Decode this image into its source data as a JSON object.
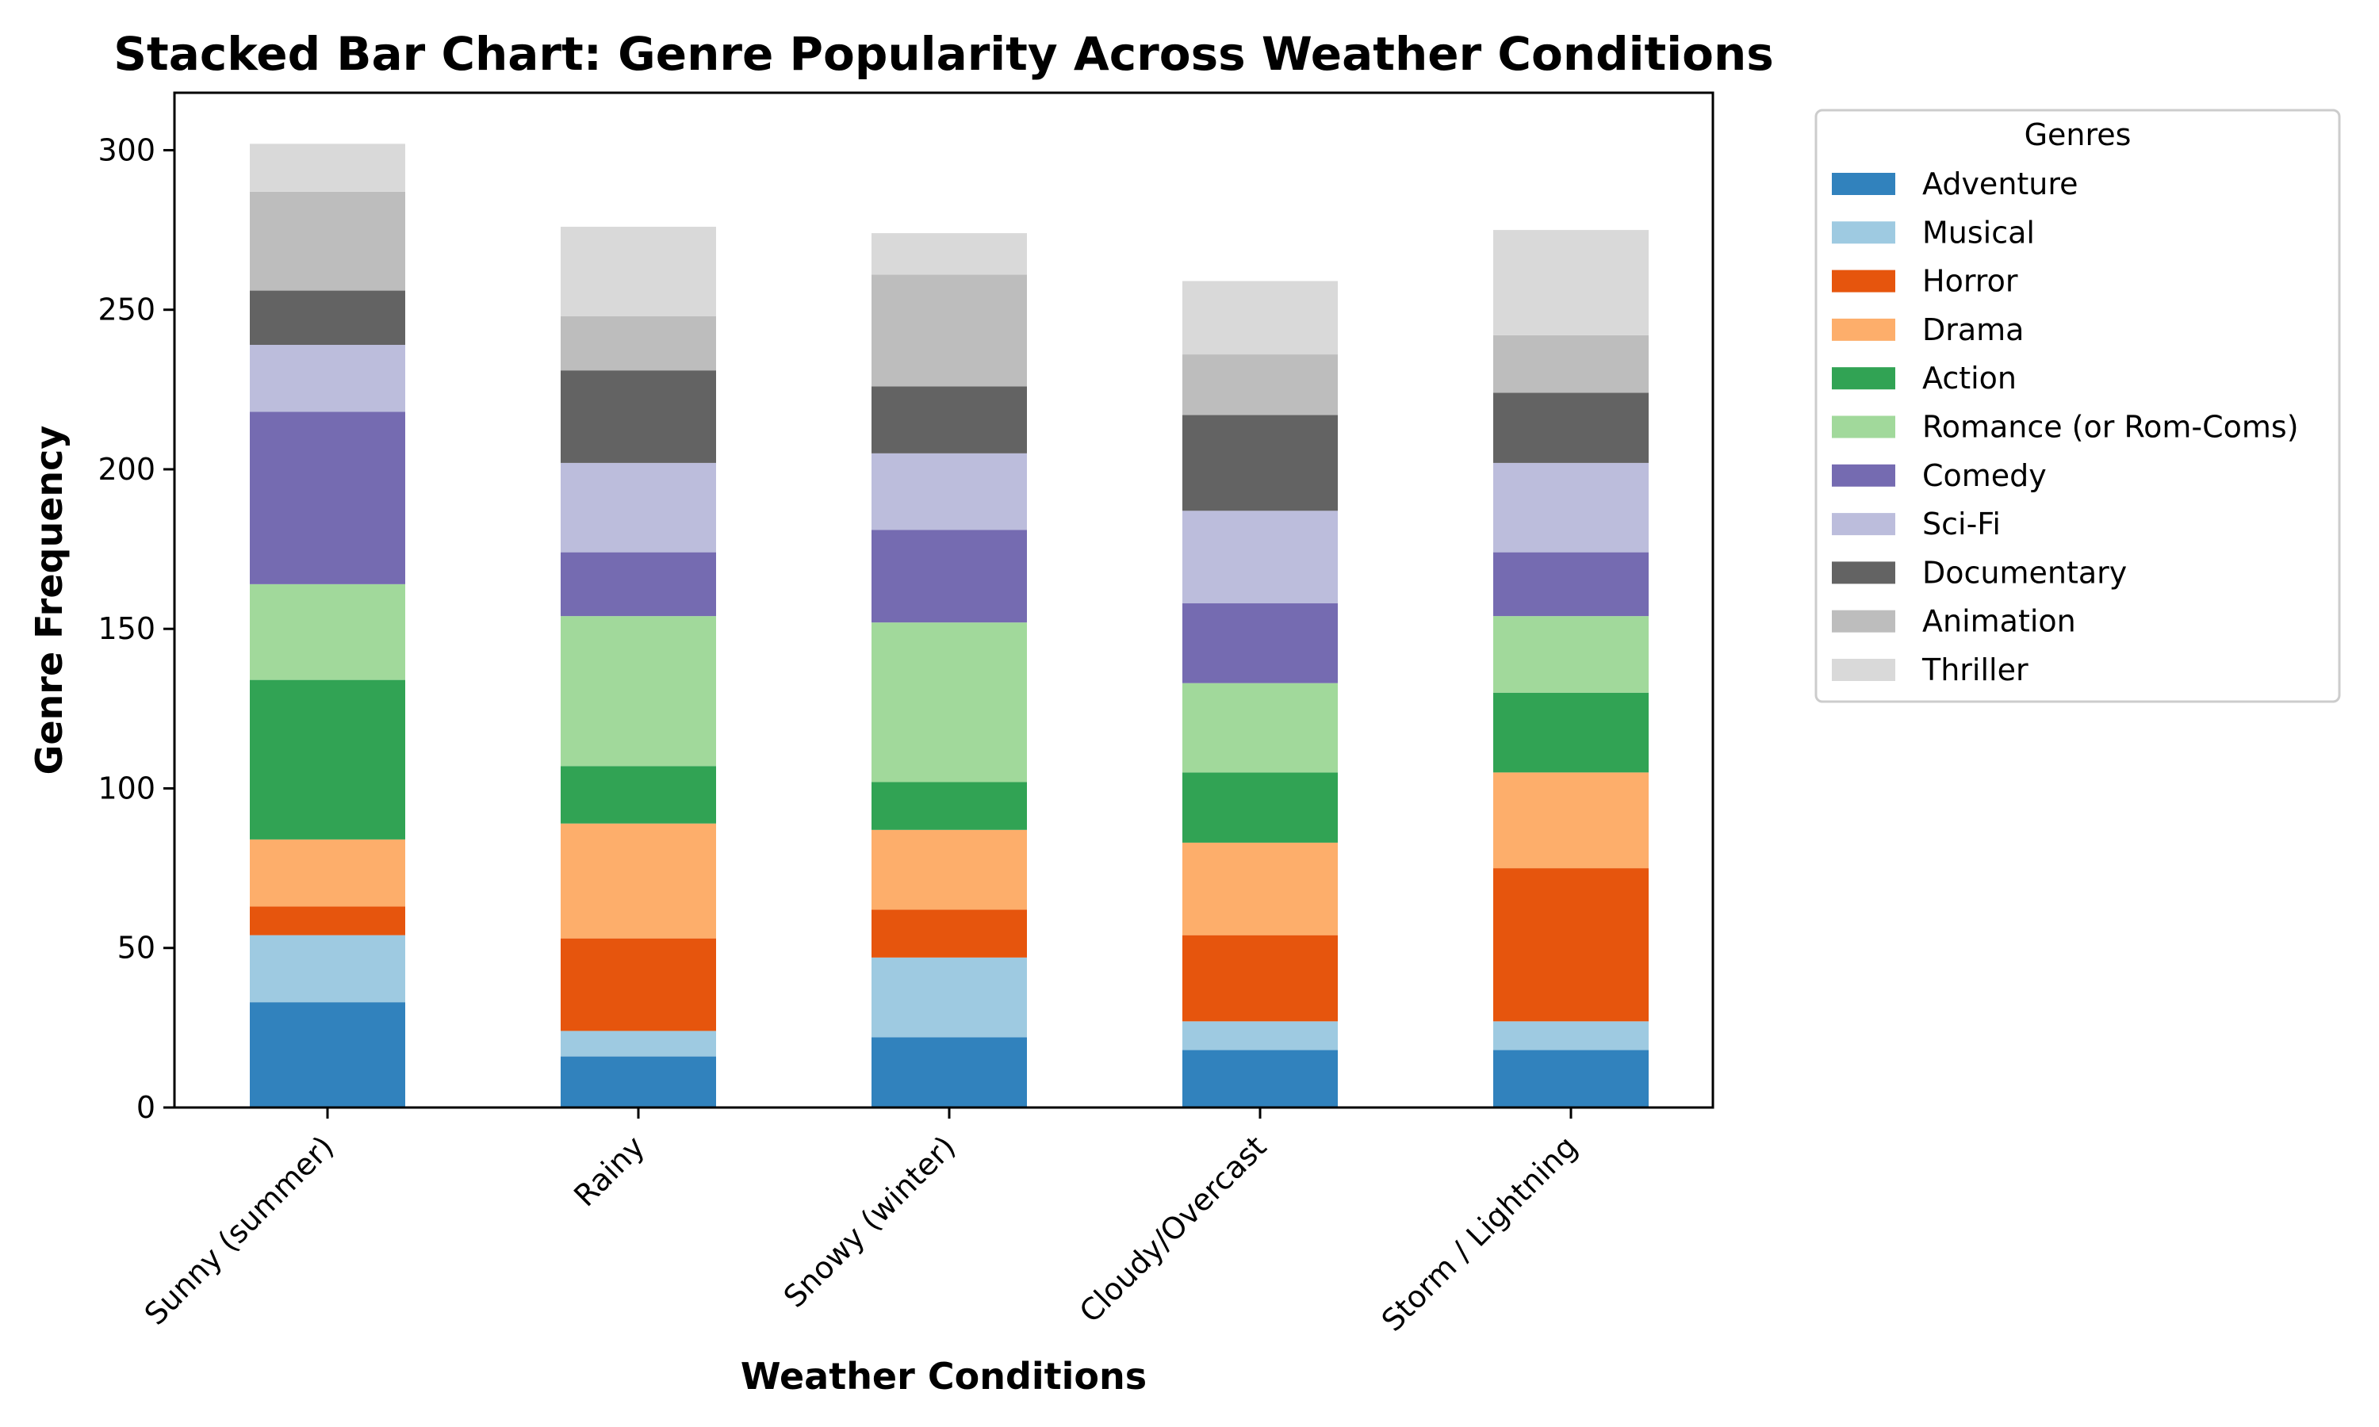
{
  "chart_data": {
    "type": "bar",
    "stacked": true,
    "title": "Stacked Bar Chart: Genre Popularity Across Weather Conditions",
    "xlabel": "Weather Conditions",
    "ylabel": "Genre Frequency",
    "ylim": [
      0,
      318
    ],
    "yticks": [
      0,
      50,
      100,
      150,
      200,
      250,
      300
    ],
    "grid": false,
    "legend": {
      "title": "Genres",
      "placement": "outside-right-top"
    },
    "categories": [
      "Sunny (summer)",
      "Rainy",
      "Snowy (winter)",
      "Cloudy/Overcast",
      "Storm / Lightning"
    ],
    "series": [
      {
        "name": "Adventure",
        "color": "#3182bd",
        "values": [
          33,
          16,
          22,
          18,
          18
        ]
      },
      {
        "name": "Musical",
        "color": "#9ecae1",
        "values": [
          21,
          8,
          25,
          9,
          9
        ]
      },
      {
        "name": "Horror",
        "color": "#e6550d",
        "values": [
          9,
          29,
          15,
          27,
          48
        ]
      },
      {
        "name": "Drama",
        "color": "#fdae6b",
        "values": [
          21,
          36,
          25,
          29,
          30
        ]
      },
      {
        "name": "Action",
        "color": "#31a354",
        "values": [
          50,
          18,
          15,
          22,
          25
        ]
      },
      {
        "name": "Romance (or Rom-Coms)",
        "color": "#a1d99b",
        "values": [
          30,
          47,
          50,
          28,
          24
        ]
      },
      {
        "name": "Comedy",
        "color": "#756bb1",
        "values": [
          54,
          20,
          29,
          25,
          20
        ]
      },
      {
        "name": "Sci-Fi",
        "color": "#bcbddc",
        "values": [
          21,
          28,
          24,
          29,
          28
        ]
      },
      {
        "name": "Documentary",
        "color": "#636363",
        "values": [
          17,
          29,
          21,
          30,
          22
        ]
      },
      {
        "name": "Animation",
        "color": "#bdbdbd",
        "values": [
          31,
          17,
          35,
          19,
          18
        ]
      },
      {
        "name": "Thriller",
        "color": "#d9d9d9",
        "values": [
          15,
          28,
          13,
          23,
          33
        ]
      }
    ]
  }
}
